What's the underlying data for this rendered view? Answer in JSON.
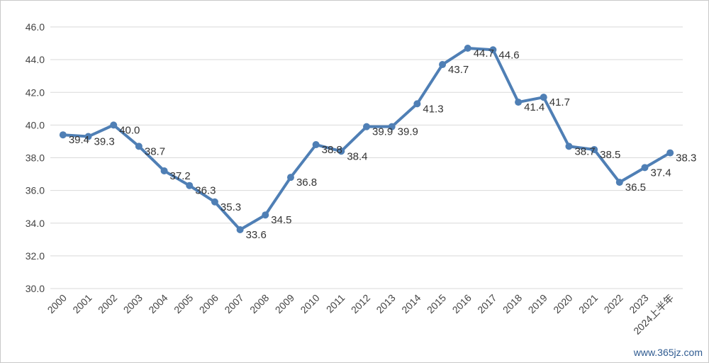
{
  "chart_data": {
    "type": "line",
    "title": "",
    "xlabel": "",
    "ylabel": "",
    "ylim": [
      30,
      46
    ],
    "yticks": [
      "30.0",
      "32.0",
      "34.0",
      "36.0",
      "38.0",
      "40.0",
      "42.0",
      "44.0",
      "46.0"
    ],
    "grid": "horizontal",
    "legend": "none",
    "line_color": "#4f7fb5",
    "categories": [
      "2000",
      "2001",
      "2002",
      "2003",
      "2004",
      "2005",
      "2006",
      "2007",
      "2008",
      "2009",
      "2010",
      "2011",
      "2012",
      "2013",
      "2014",
      "2015",
      "2016",
      "2017",
      "2018",
      "2019",
      "2020",
      "2021",
      "2022",
      "2023",
      "2024上半年"
    ],
    "values": [
      39.4,
      39.3,
      40.0,
      38.7,
      37.2,
      36.3,
      35.3,
      33.6,
      34.5,
      36.8,
      38.8,
      38.4,
      39.9,
      39.9,
      41.3,
      43.7,
      44.7,
      44.6,
      41.4,
      41.7,
      38.7,
      38.5,
      36.5,
      37.4,
      38.3
    ],
    "data_labels": [
      "39.4",
      "39.3",
      "40.0",
      "38.7",
      "37.2",
      "36.3",
      "35.3",
      "33.6",
      "34.5",
      "36.8",
      "38.8",
      "38.4",
      "39.9",
      "39.9",
      "41.3",
      "43.7",
      "44.7",
      "44.6",
      "41.4",
      "41.7",
      "38.7",
      "38.5",
      "36.5",
      "37.4",
      "38.3"
    ]
  },
  "watermark": "www.365jz.com"
}
